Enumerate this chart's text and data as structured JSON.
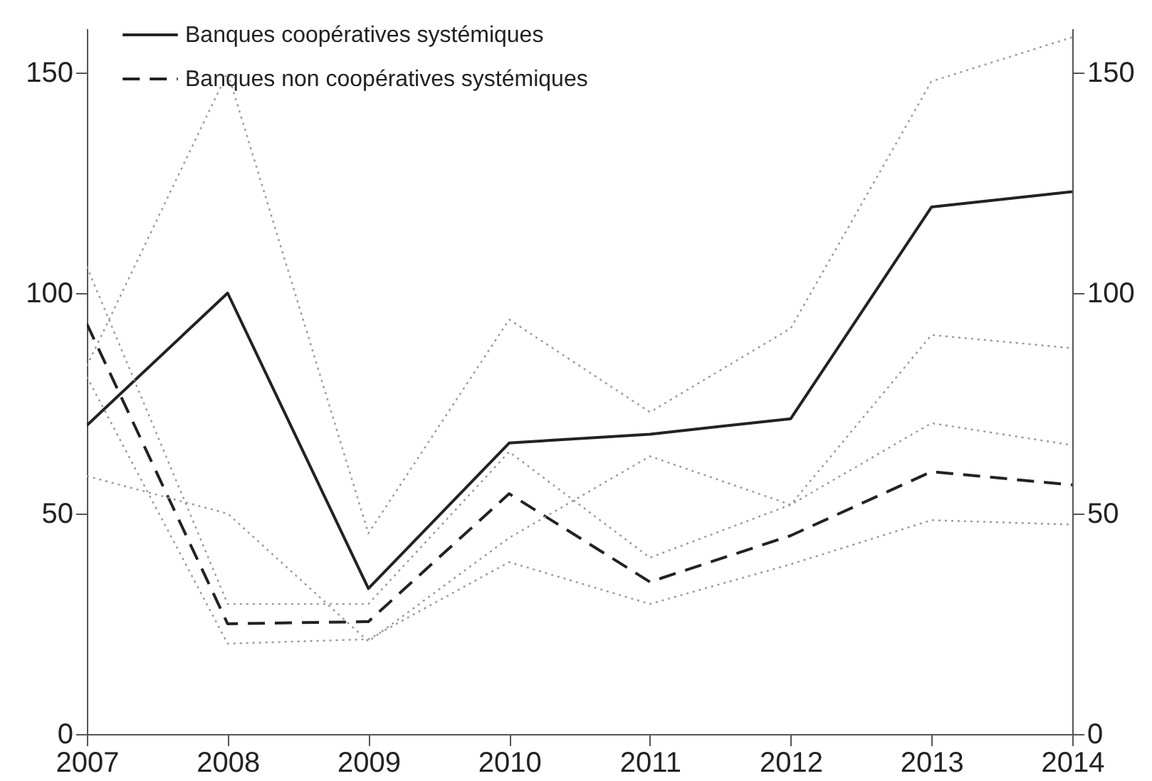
{
  "chart_data": {
    "type": "line",
    "x": [
      2007,
      2008,
      2009,
      2010,
      2011,
      2012,
      2013,
      2014
    ],
    "xlim": [
      2007,
      2014
    ],
    "xticks": [
      2007,
      2008,
      2009,
      2010,
      2011,
      2012,
      2013,
      2014
    ],
    "ylim": [
      0,
      160
    ],
    "yticks": [
      0,
      50,
      100,
      150
    ],
    "y2lim": [
      0,
      160
    ],
    "y2ticks": [
      0,
      50,
      100,
      150
    ],
    "legend": "top left",
    "grid": false,
    "marker": "none",
    "series": [
      {
        "name": "Banques coopératives systémiques",
        "color": "#222222",
        "line_style": "solid",
        "values": [
          70,
          100,
          33,
          66,
          68,
          71.5,
          119.5,
          123
        ]
      },
      {
        "name": "Banques non coopératives systémiques",
        "color": "#222222",
        "line_style": "dashed",
        "values": [
          93,
          25,
          25.5,
          54.5,
          34.5,
          45,
          59.5,
          56.5
        ]
      },
      {
        "color": "#999999",
        "line_style": "dotted",
        "values": [
          83.5,
          150,
          45.5,
          94,
          73,
          92,
          148,
          158
        ]
      },
      {
        "color": "#999999",
        "line_style": "dotted",
        "values": [
          58.5,
          50,
          21,
          44.5,
          63,
          52,
          90.5,
          87.5
        ]
      },
      {
        "color": "#999999",
        "line_style": "dotted",
        "values": [
          106,
          29.5,
          29.5,
          64,
          40,
          52,
          70.5,
          65.5
        ]
      },
      {
        "color": "#999999",
        "line_style": "dotted",
        "values": [
          81,
          20.5,
          21.5,
          39,
          29.5,
          38.5,
          48.5,
          47.5
        ]
      }
    ]
  }
}
